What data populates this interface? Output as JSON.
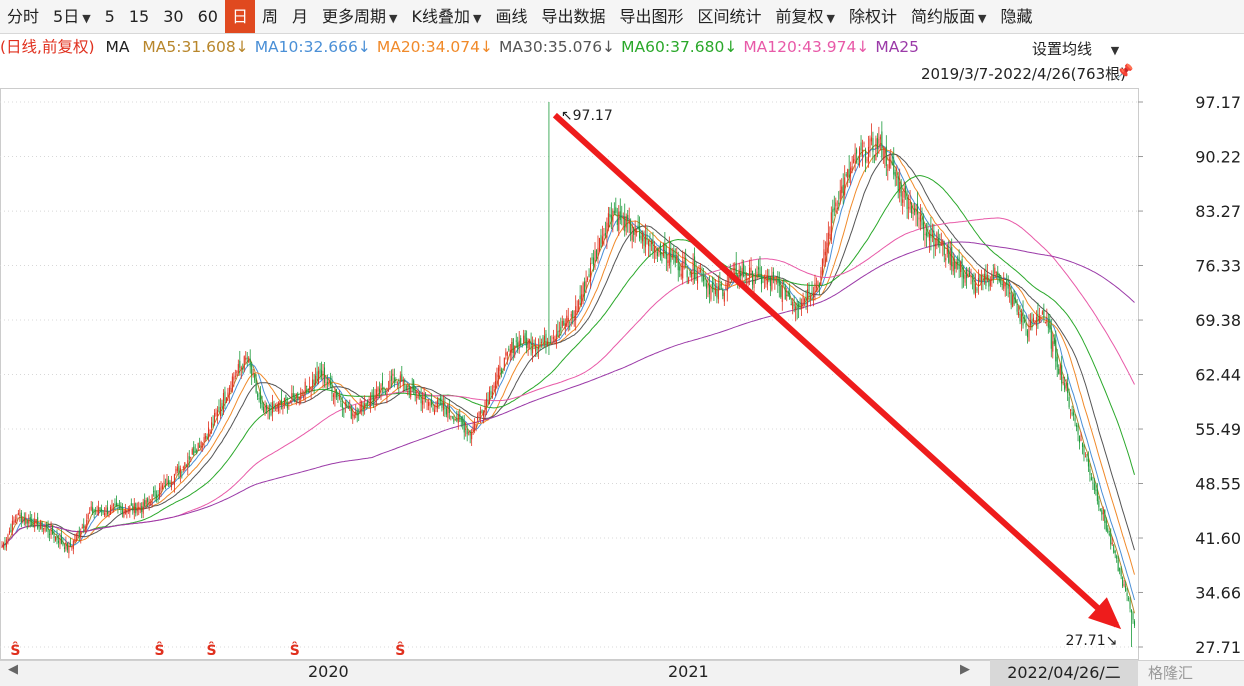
{
  "toolbar": {
    "items": [
      {
        "label": "分时",
        "caret": false,
        "active": false
      },
      {
        "label": "5日",
        "caret": true,
        "active": false
      },
      {
        "label": "5",
        "caret": false,
        "active": false
      },
      {
        "label": "15",
        "caret": false,
        "active": false
      },
      {
        "label": "30",
        "caret": false,
        "active": false
      },
      {
        "label": "60",
        "caret": false,
        "active": false
      },
      {
        "label": "日",
        "caret": false,
        "active": true
      },
      {
        "label": "周",
        "caret": false,
        "active": false
      },
      {
        "label": "月",
        "caret": false,
        "active": false
      },
      {
        "label": "更多周期",
        "caret": true,
        "active": false
      },
      {
        "label": "K线叠加",
        "caret": true,
        "active": false
      },
      {
        "label": "画线",
        "caret": false,
        "active": false
      },
      {
        "label": "导出数据",
        "caret": false,
        "active": false
      },
      {
        "label": "导出图形",
        "caret": false,
        "active": false
      },
      {
        "label": "区间统计",
        "caret": false,
        "active": false
      },
      {
        "label": "前复权",
        "caret": true,
        "active": false
      },
      {
        "label": "除权计",
        "caret": false,
        "active": false
      },
      {
        "label": "简约版面",
        "caret": true,
        "active": false
      },
      {
        "label": "隐藏",
        "caret": false,
        "active": false
      }
    ]
  },
  "indicator_bar": {
    "prefix": "(日线,前复权)",
    "ma": "MA",
    "ma_values": [
      {
        "text": "MA5:31.608↓",
        "color": "#b8862b"
      },
      {
        "text": "MA10:32.666↓",
        "color": "#4a8fd6"
      },
      {
        "text": "MA20:34.074↓",
        "color": "#f08a2a"
      },
      {
        "text": "MA30:35.076↓",
        "color": "#555555"
      },
      {
        "text": "MA60:37.680↓",
        "color": "#2aa82a"
      },
      {
        "text": "MA120:43.974↓",
        "color": "#e85aa8"
      },
      {
        "text": "MA25",
        "color": "#9b3aa8"
      }
    ],
    "setting_label": "设置均线",
    "range": "2019/3/7-2022/4/26(763根)"
  },
  "colors": {
    "up": "#e0301e",
    "down": "#1a9a3a",
    "arrow": "#ee1c1c",
    "grid": "#d8d8d8",
    "prefix": "#e0301e"
  },
  "x_axis": {
    "labels": [
      "2020",
      "2021"
    ],
    "end_date": "2022/04/26/二"
  },
  "watermark": "格隆汇",
  "chart_data": {
    "type": "candlestick",
    "title": "",
    "y_ticks": [
      97.17,
      90.22,
      83.27,
      76.33,
      69.38,
      62.44,
      55.49,
      48.55,
      41.6,
      34.66,
      27.71
    ],
    "ylim": [
      27.71,
      97.17
    ],
    "n_bars": 763,
    "anchors": [
      [
        0,
        40.5
      ],
      [
        10,
        44.5
      ],
      [
        30,
        42.8
      ],
      [
        45,
        40.2
      ],
      [
        60,
        45.0
      ],
      [
        80,
        45.3
      ],
      [
        95,
        45.5
      ],
      [
        120,
        50.5
      ],
      [
        140,
        55.5
      ],
      [
        155,
        62.0
      ],
      [
        165,
        64.5
      ],
      [
        175,
        57.5
      ],
      [
        195,
        59.2
      ],
      [
        215,
        62.5
      ],
      [
        235,
        57.5
      ],
      [
        250,
        59.5
      ],
      [
        265,
        62.0
      ],
      [
        285,
        59.0
      ],
      [
        300,
        58.0
      ],
      [
        315,
        55.0
      ],
      [
        330,
        61.0
      ],
      [
        345,
        66.5
      ],
      [
        365,
        66.5
      ],
      [
        385,
        70.0
      ],
      [
        395,
        75.5
      ],
      [
        410,
        83.5
      ],
      [
        425,
        80.5
      ],
      [
        445,
        78.0
      ],
      [
        460,
        76.0
      ],
      [
        470,
        75.5
      ],
      [
        480,
        72.5
      ],
      [
        495,
        75.5
      ],
      [
        505,
        75.0
      ],
      [
        520,
        74.0
      ],
      [
        535,
        71.5
      ],
      [
        550,
        74.5
      ],
      [
        560,
        84.0
      ],
      [
        575,
        90.0
      ],
      [
        590,
        92.0
      ],
      [
        605,
        86.0
      ],
      [
        620,
        81.5
      ],
      [
        640,
        77.0
      ],
      [
        655,
        73.5
      ],
      [
        670,
        75.5
      ],
      [
        690,
        68.0
      ],
      [
        700,
        70.5
      ],
      [
        720,
        71.5
      ],
      [
        735,
        67.5
      ],
      [
        745,
        63.0
      ],
      [
        755,
        57.5
      ],
      [
        763,
        48.0
      ]
    ],
    "high": 97.17,
    "low": 27.71,
    "last_close": 30.8,
    "annotations": [
      {
        "label": "97.17",
        "bar": 368
      },
      {
        "label": "27.71",
        "bar": 760
      }
    ],
    "marker_bars": [
      9,
      106,
      141,
      197,
      268
    ],
    "marker_symbol": "Ŝ"
  }
}
